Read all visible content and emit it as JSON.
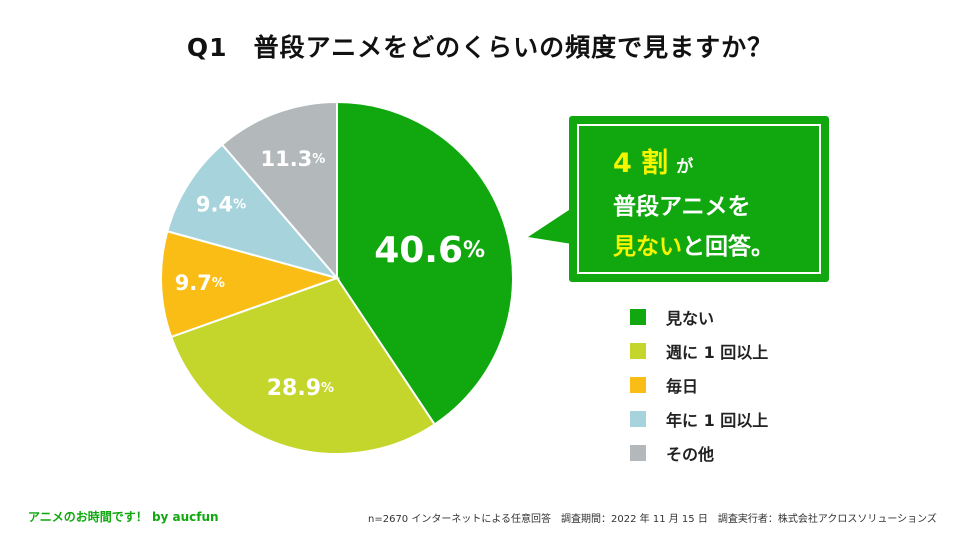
{
  "chart_data": {
    "type": "pie",
    "title": "Q1　普段アニメをどのくらいの頻度で見ますか？",
    "slices": [
      {
        "label": "見ない",
        "value": 40.6,
        "display": "40.6",
        "color": "#11a80f"
      },
      {
        "label": "週に 1 回以上",
        "value": 28.9,
        "display": "28.9",
        "color": "#c4d62b"
      },
      {
        "label": "毎日",
        "value": 9.7,
        "display": "9.7",
        "color": "#fabd16"
      },
      {
        "label": "年に 1 回以上",
        "value": 9.4,
        "display": "9.4",
        "color": "#a6d3dc"
      },
      {
        "label": "その他",
        "value": 11.3,
        "display": "11.3",
        "color": "#b3b8ba"
      }
    ],
    "unit": "%",
    "legend_position": "right"
  },
  "callout": {
    "ratio": "4 割",
    "particle": "が",
    "line2": "普段アニメを",
    "line3_highlight": "見ない",
    "line3_rest": "と回答。"
  },
  "footer": {
    "left": "アニメのお時間です！ by aucfun",
    "right": "n=2670 インターネットによる任意回答　調査期間：2022 年 11 月 15 日　調査実行者：株式会社アクロスソリューションズ"
  }
}
